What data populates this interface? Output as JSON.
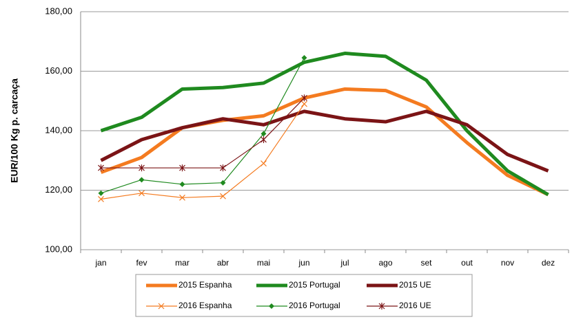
{
  "chart_data": {
    "type": "line",
    "y_label": "EUR/100 Kg p. carcaça",
    "categories": [
      "jan",
      "fev",
      "mar",
      "abr",
      "mai",
      "jun",
      "jul",
      "ago",
      "set",
      "out",
      "nov",
      "dez"
    ],
    "ylim": [
      100,
      180
    ],
    "yticks": [
      {
        "value": 100,
        "label": "100,00"
      },
      {
        "value": 120,
        "label": "120,00"
      },
      {
        "value": 140,
        "label": "140,00"
      },
      {
        "value": 160,
        "label": "160,00"
      },
      {
        "value": 180,
        "label": "180,00"
      }
    ],
    "grid": true,
    "series": [
      {
        "name": "2015 Espanha",
        "color": "#f47b20",
        "width": 5,
        "marker": "none",
        "values": [
          126,
          131,
          141,
          143.5,
          145,
          151,
          154,
          153.5,
          148,
          136,
          125,
          118.5
        ]
      },
      {
        "name": "2015 Portugal",
        "color": "#1f8a1f",
        "width": 5,
        "marker": "none",
        "values": [
          140,
          144.5,
          154,
          154.5,
          156,
          163,
          166,
          165,
          157,
          140,
          126.5,
          118.5
        ]
      },
      {
        "name": "2015 UE",
        "color": "#7b1416",
        "width": 5,
        "marker": "none",
        "values": [
          130,
          137,
          141,
          144,
          142,
          146.5,
          144,
          143,
          146.5,
          142,
          132,
          126.5
        ]
      },
      {
        "name": "2016 Espanha",
        "color": "#f47b20",
        "width": 1.2,
        "marker": "x",
        "values": [
          117,
          119,
          117.5,
          118,
          129,
          149,
          null,
          null,
          null,
          null,
          null,
          null
        ]
      },
      {
        "name": "2016 Portugal",
        "color": "#1f8a1f",
        "width": 1.2,
        "marker": "diamond",
        "values": [
          119,
          123.5,
          122,
          122.5,
          139,
          164.5,
          null,
          null,
          null,
          null,
          null,
          null
        ]
      },
      {
        "name": "2016 UE",
        "color": "#7b1416",
        "width": 1.2,
        "marker": "star",
        "values": [
          127.5,
          127.5,
          127.5,
          127.5,
          137,
          151,
          null,
          null,
          null,
          null,
          null,
          null
        ]
      }
    ]
  }
}
